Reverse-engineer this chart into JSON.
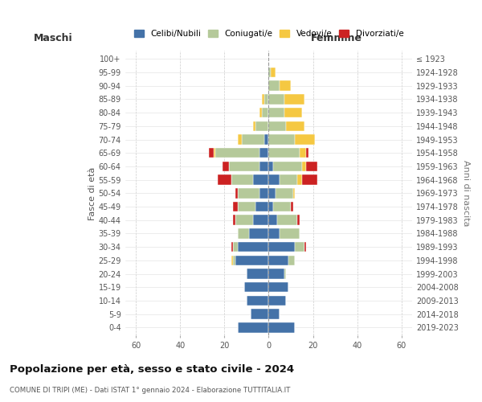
{
  "age_groups": [
    "0-4",
    "5-9",
    "10-14",
    "15-19",
    "20-24",
    "25-29",
    "30-34",
    "35-39",
    "40-44",
    "45-49",
    "50-54",
    "55-59",
    "60-64",
    "65-69",
    "70-74",
    "75-79",
    "80-84",
    "85-89",
    "90-94",
    "95-99",
    "100+"
  ],
  "birth_years": [
    "2019-2023",
    "2014-2018",
    "2009-2013",
    "2004-2008",
    "1999-2003",
    "1994-1998",
    "1989-1993",
    "1984-1988",
    "1979-1983",
    "1974-1978",
    "1969-1973",
    "1964-1968",
    "1959-1963",
    "1954-1958",
    "1949-1953",
    "1944-1948",
    "1939-1943",
    "1934-1938",
    "1929-1933",
    "1924-1928",
    "≤ 1923"
  ],
  "maschi": {
    "celibi": [
      14,
      8,
      10,
      11,
      10,
      15,
      14,
      9,
      7,
      6,
      4,
      7,
      4,
      4,
      2,
      0,
      0,
      0,
      0,
      0,
      0
    ],
    "coniugati": [
      0,
      0,
      0,
      0,
      0,
      1,
      2,
      5,
      8,
      8,
      10,
      10,
      14,
      20,
      10,
      6,
      3,
      2,
      0,
      0,
      0
    ],
    "vedovi": [
      0,
      0,
      0,
      0,
      0,
      1,
      0,
      0,
      0,
      0,
      0,
      0,
      0,
      1,
      2,
      1,
      1,
      1,
      0,
      0,
      0
    ],
    "divorziati": [
      0,
      0,
      0,
      0,
      0,
      0,
      1,
      0,
      1,
      2,
      1,
      6,
      3,
      2,
      0,
      0,
      0,
      0,
      0,
      0,
      0
    ]
  },
  "femmine": {
    "nubili": [
      12,
      5,
      8,
      9,
      7,
      9,
      12,
      5,
      4,
      2,
      3,
      5,
      2,
      0,
      0,
      0,
      0,
      0,
      0,
      0,
      0
    ],
    "coniugate": [
      0,
      0,
      0,
      0,
      1,
      3,
      4,
      9,
      9,
      8,
      8,
      8,
      13,
      14,
      12,
      8,
      7,
      7,
      5,
      1,
      0
    ],
    "vedove": [
      0,
      0,
      0,
      0,
      0,
      0,
      0,
      0,
      0,
      0,
      1,
      2,
      2,
      3,
      9,
      8,
      8,
      9,
      5,
      2,
      0
    ],
    "divorziate": [
      0,
      0,
      0,
      0,
      0,
      0,
      1,
      0,
      1,
      1,
      0,
      7,
      5,
      1,
      0,
      0,
      0,
      0,
      0,
      0,
      0
    ]
  },
  "colors": {
    "celibi": "#4472a8",
    "coniugati": "#b5c99a",
    "vedovi": "#f5c842",
    "divorziati": "#cc2222"
  },
  "xlim": 65,
  "title": "Popolazione per età, sesso e stato civile - 2024",
  "subtitle": "COMUNE DI TRIPI (ME) - Dati ISTAT 1° gennaio 2024 - Elaborazione TUTTITALIA.IT",
  "xlabel_left": "Maschi",
  "xlabel_right": "Femmine",
  "ylabel_left": "Fasce di età",
  "ylabel_right": "Anni di nascita",
  "legend_labels": [
    "Celibi/Nubili",
    "Coniugati/e",
    "Vedovi/e",
    "Divorziati/e"
  ],
  "background_color": "#ffffff",
  "bar_height": 0.75
}
